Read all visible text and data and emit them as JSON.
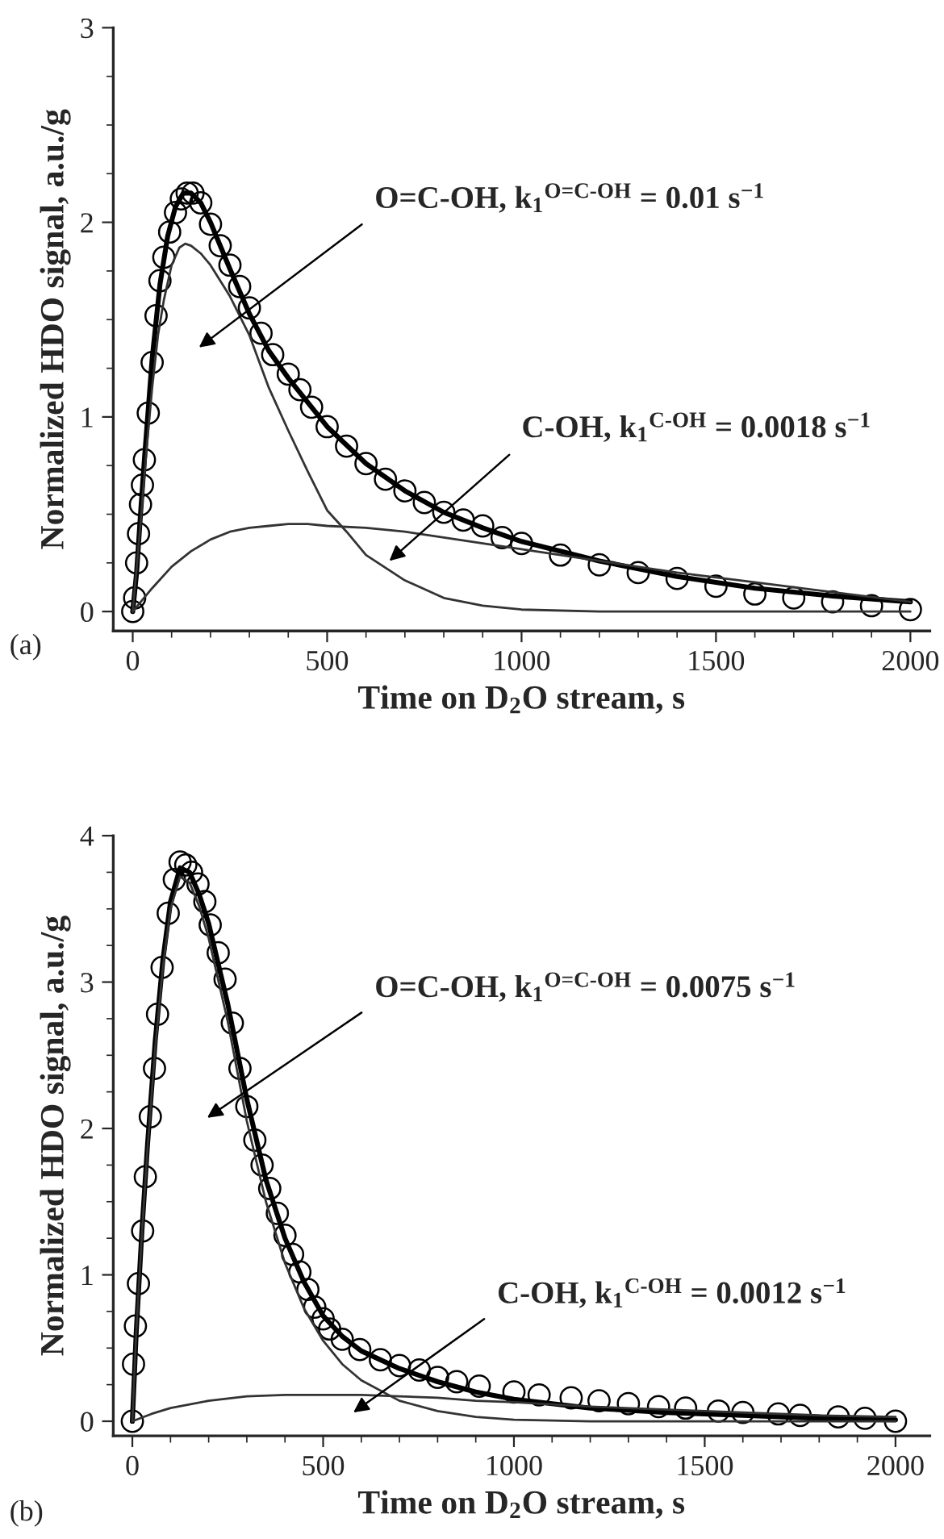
{
  "chart_data": [
    {
      "type": "line",
      "xlabel": "Time on D$_{2}$O stream, s",
      "ylabel": "Normalized HDO signal, a.u./g",
      "xlim": [
        -50,
        2050
      ],
      "ylim": [
        -0.1,
        3
      ],
      "xticks": [
        0,
        500,
        1000,
        1500,
        2000,
        {
          "value": 100,
          "label": null
        },
        {
          "value": 200,
          "label": null
        },
        {
          "value": 300,
          "label": null
        },
        {
          "value": 400,
          "label": null
        },
        {
          "value": 600,
          "label": null
        },
        {
          "value": 700,
          "label": null
        },
        {
          "value": 800,
          "label": null
        },
        {
          "value": 900,
          "label": null
        },
        {
          "value": 1100,
          "label": null
        },
        {
          "value": 1200,
          "label": null
        },
        {
          "value": 1300,
          "label": null
        },
        {
          "value": 1400,
          "label": null
        },
        {
          "value": 1600,
          "label": null
        },
        {
          "value": 1700,
          "label": null
        },
        {
          "value": 1800,
          "label": null
        },
        {
          "value": 1900,
          "label": null
        }
      ],
      "yticks": [
        0,
        1,
        2,
        3,
        {
          "value": 0.25,
          "label": null
        },
        {
          "value": 0.5,
          "label": null
        },
        {
          "value": 0.75,
          "label": null
        },
        {
          "value": 1.25,
          "label": null
        },
        {
          "value": 1.5,
          "label": null
        },
        {
          "value": 1.75,
          "label": null
        },
        {
          "value": 2.25,
          "label": null
        },
        {
          "value": 2.5,
          "label": null
        },
        {
          "value": 2.75,
          "label": null
        }
      ],
      "grid": false,
      "legend": false,
      "series": [
        {
          "type": "scatter",
          "marker": "circle",
          "color": "#000000",
          "x": [
            0,
            5,
            10,
            15,
            20,
            25,
            30,
            40,
            50,
            60,
            70,
            80,
            95,
            110,
            125,
            140,
            155,
            175,
            200,
            225,
            250,
            275,
            300,
            330,
            360,
            400,
            430,
            460,
            500,
            550,
            600,
            650,
            700,
            750,
            800,
            850,
            900,
            950,
            1000,
            1100,
            1200,
            1300,
            1400,
            1500,
            1600,
            1700,
            1800,
            1900,
            2000
          ],
          "values": [
            0,
            0.07,
            0.25,
            0.4,
            0.55,
            0.65,
            0.78,
            1.02,
            1.28,
            1.52,
            1.7,
            1.82,
            1.95,
            2.05,
            2.12,
            2.15,
            2.15,
            2.1,
            1.99,
            1.88,
            1.78,
            1.67,
            1.56,
            1.43,
            1.32,
            1.22,
            1.14,
            1.05,
            0.95,
            0.85,
            0.76,
            0.68,
            0.62,
            0.56,
            0.51,
            0.47,
            0.44,
            0.38,
            0.35,
            0.29,
            0.24,
            0.2,
            0.17,
            0.13,
            0.09,
            0.07,
            0.05,
            0.03,
            0.01
          ]
        },
        {
          "color": "#000000",
          "x": [
            0,
            10,
            20,
            30,
            50,
            70,
            90,
            110,
            130,
            150,
            175,
            200,
            250,
            300,
            350,
            400,
            500,
            600,
            700,
            800,
            900,
            1000,
            1200,
            1400,
            1600,
            1800,
            2000
          ],
          "values": [
            0,
            0.2,
            0.5,
            0.78,
            1.3,
            1.68,
            1.93,
            2.08,
            2.15,
            2.15,
            2.1,
            2.0,
            1.76,
            1.53,
            1.34,
            1.2,
            0.95,
            0.76,
            0.62,
            0.51,
            0.43,
            0.36,
            0.26,
            0.18,
            0.12,
            0.08,
            0.05
          ]
        },
        {
          "color": "#333333",
          "x": [
            0,
            10,
            20,
            35,
            50,
            65,
            80,
            100,
            120,
            135,
            150,
            175,
            200,
            250,
            300,
            350,
            400,
            450,
            500,
            550,
            600,
            700,
            800,
            900,
            1000,
            1200,
            1500,
            2000
          ],
          "values": [
            0,
            0.22,
            0.45,
            0.82,
            1.15,
            1.42,
            1.6,
            1.78,
            1.87,
            1.89,
            1.88,
            1.84,
            1.78,
            1.62,
            1.42,
            1.15,
            0.93,
            0.72,
            0.52,
            0.41,
            0.29,
            0.16,
            0.07,
            0.03,
            0.01,
            0,
            0,
            0
          ]
        },
        {
          "color": "#333333",
          "x": [
            0,
            25,
            50,
            100,
            150,
            200,
            250,
            300,
            350,
            400,
            450,
            500,
            600,
            700,
            800,
            900,
            1000,
            1200,
            1400,
            1600,
            1800,
            2000
          ],
          "values": [
            0,
            0.06,
            0.12,
            0.23,
            0.31,
            0.37,
            0.41,
            0.43,
            0.44,
            0.45,
            0.45,
            0.44,
            0.43,
            0.41,
            0.38,
            0.35,
            0.32,
            0.26,
            0.2,
            0.15,
            0.1,
            0.05
          ]
        }
      ],
      "annotations": [
        "O=C-OH, k$_{1}$$^{O=C-OH}$ = 0.01 s$^{−1}$",
        {
          "text": "C-OH, k$_{1}$$^{C-OH}$ = 0.0018 s$^{−1}$",
          "x": 660,
          "y": 0.26
        },
        "(a)"
      ]
    },
    {
      "type": "line",
      "xlabel": "Time on D$_{2}$O stream, s",
      "ylabel": "Normalized HDO signal, a.u./g",
      "xlim": [
        -50,
        2090
      ],
      "ylim": [
        -0.1,
        4
      ],
      "xticks": [
        0,
        500,
        1000,
        1500,
        2000,
        {
          "value": 100,
          "label": null
        },
        {
          "value": 200,
          "label": null
        },
        {
          "value": 300,
          "label": null
        },
        {
          "value": 400,
          "label": null
        },
        {
          "value": 600,
          "label": null
        },
        {
          "value": 700,
          "label": null
        },
        {
          "value": 800,
          "label": null
        },
        {
          "value": 900,
          "label": null
        },
        {
          "value": 1100,
          "label": null
        },
        {
          "value": 1200,
          "label": null
        },
        {
          "value": 1300,
          "label": null
        },
        {
          "value": 1400,
          "label": null
        },
        {
          "value": 1600,
          "label": null
        },
        {
          "value": 1700,
          "label": null
        },
        {
          "value": 1800,
          "label": null
        },
        {
          "value": 1900,
          "label": null
        }
      ],
      "yticks": [
        0,
        1,
        2,
        3,
        4,
        {
          "value": 0.25,
          "label": null
        },
        {
          "value": 0.5,
          "label": null
        },
        {
          "value": 0.75,
          "label": null
        },
        {
          "value": 1.25,
          "label": null
        },
        {
          "value": 1.5,
          "label": null
        },
        {
          "value": 1.75,
          "label": null
        },
        {
          "value": 2.25,
          "label": null
        },
        {
          "value": 2.5,
          "label": null
        },
        {
          "value": 2.75,
          "label": null
        },
        {
          "value": 3.25,
          "label": null
        },
        {
          "value": 3.5,
          "label": null
        },
        {
          "value": 3.75,
          "label": null
        }
      ],
      "grid": false,
      "legend": false,
      "series": [
        {
          "type": "scatter",
          "marker": "circle",
          "color": "#000000",
          "x": [
            0,
            3,
            8,
            16,
            27,
            34,
            47,
            58,
            66,
            78,
            94,
            110,
            125,
            140,
            155,
            172,
            190,
            204,
            225,
            243,
            262,
            282,
            300,
            321,
            340,
            360,
            380,
            400,
            420,
            439,
            460,
            478,
            500,
            517,
            550,
            596,
            650,
            700,
            752,
            800,
            850,
            909,
            1000,
            1066,
            1150,
            1223,
            1300,
            1379,
            1450,
            1536,
            1600,
            1693,
            1750,
            1850,
            1920,
            2000
          ],
          "values": [
            0,
            0.39,
            0.65,
            0.94,
            1.3,
            1.67,
            2.08,
            2.41,
            2.78,
            3.1,
            3.47,
            3.7,
            3.82,
            3.8,
            3.75,
            3.67,
            3.55,
            3.39,
            3.2,
            3.02,
            2.72,
            2.41,
            2.15,
            1.92,
            1.75,
            1.59,
            1.42,
            1.27,
            1.14,
            1.02,
            0.9,
            0.78,
            0.7,
            0.63,
            0.56,
            0.49,
            0.42,
            0.38,
            0.35,
            0.3,
            0.27,
            0.24,
            0.2,
            0.18,
            0.16,
            0.14,
            0.12,
            0.1,
            0.09,
            0.07,
            0.06,
            0.05,
            0.04,
            0.03,
            0.02,
            0
          ]
        },
        {
          "color": "#000000",
          "x": [
            0,
            10,
            25,
            40,
            60,
            80,
            100,
            125,
            150,
            175,
            200,
            250,
            300,
            350,
            400,
            450,
            500,
            550,
            600,
            700,
            800,
            900,
            1000,
            1200,
            1400,
            1600,
            1800,
            2000
          ],
          "values": [
            0,
            0.6,
            1.3,
            1.9,
            2.6,
            3.15,
            3.55,
            3.78,
            3.75,
            3.6,
            3.4,
            2.85,
            2.2,
            1.65,
            1.25,
            0.95,
            0.72,
            0.58,
            0.48,
            0.36,
            0.27,
            0.2,
            0.15,
            0.09,
            0.06,
            0.04,
            0.02,
            0.01
          ]
        },
        {
          "color": "#333333",
          "x": [
            0,
            10,
            25,
            40,
            60,
            80,
            100,
            125,
            150,
            175,
            200,
            250,
            300,
            350,
            400,
            450,
            500,
            550,
            600,
            700,
            800,
            900,
            1000,
            1200,
            1400,
            1600,
            1800,
            2000
          ],
          "values": [
            0,
            0.6,
            1.28,
            1.87,
            2.55,
            3.1,
            3.5,
            3.72,
            3.68,
            3.52,
            3.3,
            2.73,
            2.05,
            1.5,
            1.08,
            0.77,
            0.55,
            0.39,
            0.28,
            0.14,
            0.07,
            0.03,
            0.01,
            0,
            0,
            0,
            0,
            0
          ]
        },
        {
          "color": "#333333",
          "x": [
            0,
            50,
            100,
            200,
            300,
            400,
            500,
            600,
            700,
            800,
            900,
            1000,
            1200,
            1500,
            1800,
            2000
          ],
          "values": [
            0,
            0.05,
            0.09,
            0.14,
            0.17,
            0.18,
            0.18,
            0.18,
            0.17,
            0.16,
            0.14,
            0.13,
            0.1,
            0.07,
            0.04,
            0.03
          ]
        }
      ],
      "annotations": [
        "O=C-OH, k$_{1}$$^{O=C-OH}$ = 0.0075 s$^{−1}$",
        "C-OH, k$_{1}$$^{C-OH}$ = 0.0012 s$^{−1}$",
        "(b)"
      ]
    }
  ]
}
